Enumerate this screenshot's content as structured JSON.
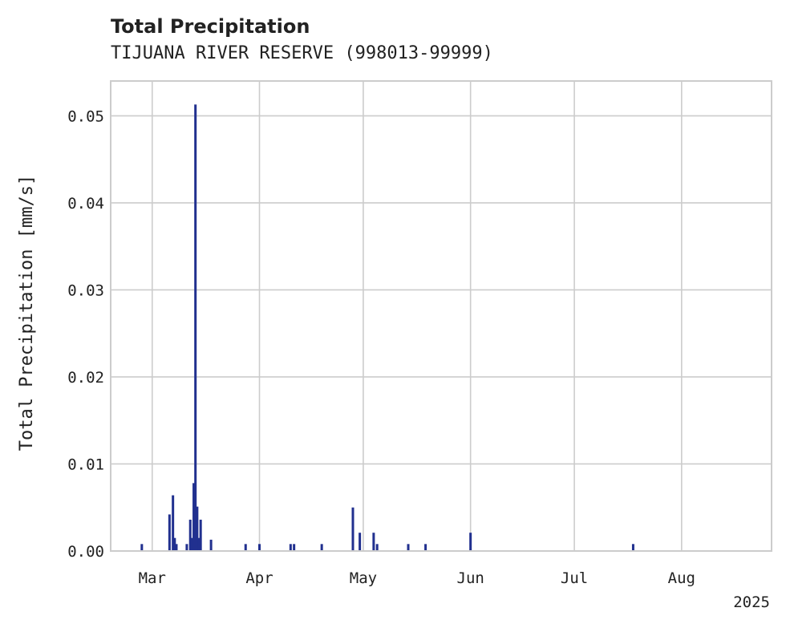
{
  "chart_data": {
    "type": "bar",
    "title": "Total Precipitation",
    "subtitle": "TIJUANA RIVER RESERVE (998013-99999)",
    "xlabel": "",
    "ylabel": "Total Precipitation [mm/s]",
    "year_label": "2025",
    "x_ticks": [
      {
        "label": "Mar",
        "date": "2025-03-01"
      },
      {
        "label": "Apr",
        "date": "2025-04-01"
      },
      {
        "label": "May",
        "date": "2025-05-01"
      },
      {
        "label": "Jun",
        "date": "2025-06-01"
      },
      {
        "label": "Jul",
        "date": "2025-07-01"
      },
      {
        "label": "Aug",
        "date": "2025-08-01"
      }
    ],
    "y_ticks": [
      {
        "label": "0.00",
        "value": 0.0
      },
      {
        "label": "0.01",
        "value": 0.01
      },
      {
        "label": "0.02",
        "value": 0.02
      },
      {
        "label": "0.03",
        "value": 0.03
      },
      {
        "label": "0.04",
        "value": 0.04
      },
      {
        "label": "0.05",
        "value": 0.05
      }
    ],
    "xlim": [
      "2025-02-17",
      "2025-08-27"
    ],
    "ylim": [
      0,
      0.054
    ],
    "grid": true,
    "color": "#21308f",
    "points": [
      {
        "date": "2025-02-26",
        "value": 0.0008
      },
      {
        "date": "2025-03-06",
        "value": 0.0042
      },
      {
        "date": "2025-03-07",
        "value": 0.0064
      },
      {
        "date": "2025-03-07T12:00",
        "value": 0.0015
      },
      {
        "date": "2025-03-08",
        "value": 0.0008
      },
      {
        "date": "2025-03-11",
        "value": 0.0008
      },
      {
        "date": "2025-03-12",
        "value": 0.0036
      },
      {
        "date": "2025-03-12T12:00",
        "value": 0.0015
      },
      {
        "date": "2025-03-13",
        "value": 0.0078
      },
      {
        "date": "2025-03-13T12:00",
        "value": 0.0513
      },
      {
        "date": "2025-03-14",
        "value": 0.0051
      },
      {
        "date": "2025-03-14T12:00",
        "value": 0.0015
      },
      {
        "date": "2025-03-15",
        "value": 0.0036
      },
      {
        "date": "2025-03-18",
        "value": 0.0013
      },
      {
        "date": "2025-03-28",
        "value": 0.0008
      },
      {
        "date": "2025-04-01",
        "value": 0.0008
      },
      {
        "date": "2025-04-10",
        "value": 0.0008
      },
      {
        "date": "2025-04-11",
        "value": 0.0008
      },
      {
        "date": "2025-04-19",
        "value": 0.0008
      },
      {
        "date": "2025-04-28",
        "value": 0.005
      },
      {
        "date": "2025-04-30",
        "value": 0.0021
      },
      {
        "date": "2025-05-04",
        "value": 0.0021
      },
      {
        "date": "2025-05-05",
        "value": 0.0008
      },
      {
        "date": "2025-05-14",
        "value": 0.0008
      },
      {
        "date": "2025-05-19",
        "value": 0.0008
      },
      {
        "date": "2025-06-01",
        "value": 0.0021
      },
      {
        "date": "2025-07-18",
        "value": 0.0008
      }
    ]
  }
}
